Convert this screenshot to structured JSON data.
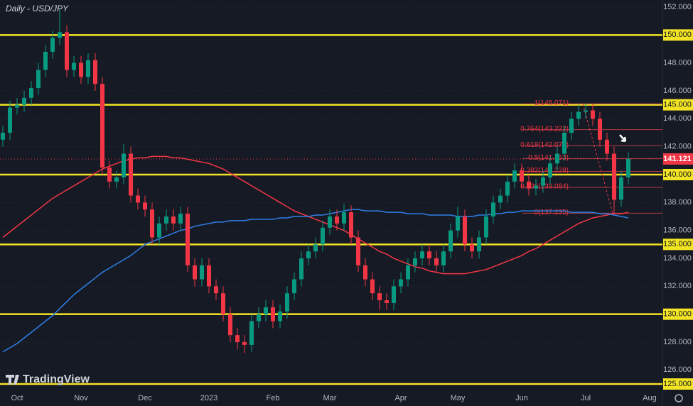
{
  "chart_data": {
    "type": "candlestick",
    "title": "Daily - USD/JPY",
    "watermark": "TradingView",
    "categories": [
      null,
      null,
      "Oct",
      null,
      null,
      null,
      null,
      null,
      null,
      null,
      null,
      "Nov",
      null,
      null,
      null,
      null,
      null,
      null,
      null,
      null,
      "Dec",
      null,
      null,
      null,
      null,
      null,
      null,
      null,
      null,
      "2023",
      null,
      null,
      null,
      null,
      null,
      null,
      null,
      null,
      "Feb",
      null,
      null,
      null,
      null,
      null,
      null,
      null,
      "Mar",
      null,
      null,
      null,
      null,
      null,
      null,
      null,
      null,
      null,
      "Apr",
      null,
      null,
      null,
      null,
      null,
      null,
      null,
      "May",
      null,
      null,
      null,
      null,
      null,
      null,
      null,
      null,
      "Jun",
      null,
      null,
      null,
      null,
      null,
      null,
      null,
      null,
      "Jul",
      null,
      null,
      null,
      null,
      null,
      null,
      null,
      null,
      "Aug"
    ],
    "open": [
      142.5,
      143.0,
      144.8,
      145.0,
      145.5,
      146.2,
      147.5,
      148.8,
      149.8,
      150.2,
      147.5,
      148.0,
      147.0,
      148.2,
      146.5,
      140.5,
      139.5,
      139.8,
      141.5,
      138.5,
      138.0,
      137.5,
      135.5,
      136.5,
      137.0,
      136.5,
      137.2,
      133.5,
      132.5,
      133.5,
      132.0,
      131.5,
      130.0,
      128.5,
      128.0,
      127.8,
      129.5,
      130.0,
      130.5,
      129.5,
      130.2,
      131.5,
      132.5,
      134.0,
      134.5,
      135.0,
      136.2,
      137.0,
      136.5,
      137.3,
      135.5,
      133.5,
      132.5,
      131.5,
      131.0,
      130.8,
      132.0,
      132.5,
      133.5,
      134.0,
      134.5,
      134.0,
      133.5,
      134.5,
      136.0,
      137.0,
      135.0,
      134.5,
      135.5,
      137.0,
      138.0,
      138.5,
      139.5,
      140.3,
      139.5,
      139.0,
      139.2,
      139.8,
      140.8,
      141.5,
      143.0,
      144.0,
      144.5,
      144.6,
      144.0,
      142.5,
      141.5,
      138.2,
      139.8,
      null,
      null,
      null
    ],
    "high": [
      143.5,
      145.3,
      145.5,
      146.0,
      146.7,
      148.0,
      149.3,
      150.3,
      151.9,
      150.7,
      148.5,
      148.5,
      148.7,
      148.7,
      147.0,
      141.0,
      140.3,
      142.2,
      142.0,
      139.0,
      138.5,
      138.0,
      137.0,
      137.5,
      137.5,
      137.7,
      137.7,
      134.0,
      134.0,
      134.0,
      132.5,
      132.0,
      130.5,
      129.0,
      128.5,
      130.0,
      130.5,
      131.0,
      131.0,
      130.7,
      132.0,
      133.0,
      134.5,
      135.0,
      135.5,
      136.7,
      137.5,
      137.5,
      137.9,
      137.8,
      136.0,
      134.0,
      133.0,
      132.0,
      131.5,
      132.5,
      133.0,
      134.0,
      134.5,
      135.0,
      135.0,
      134.5,
      135.0,
      136.5,
      137.7,
      137.5,
      135.5,
      136.0,
      137.5,
      138.5,
      139.0,
      140.0,
      140.8,
      140.8,
      140.0,
      139.7,
      140.3,
      141.3,
      142.0,
      143.5,
      144.5,
      145.0,
      145.1,
      145.1,
      144.5,
      143.0,
      142.0,
      140.3,
      141.6,
      null,
      null,
      null
    ],
    "low": [
      142.0,
      142.5,
      144.3,
      144.5,
      145.0,
      145.7,
      147.0,
      148.3,
      149.3,
      147.0,
      147.0,
      146.5,
      146.5,
      146.0,
      140.0,
      139.0,
      139.0,
      139.3,
      138.0,
      137.5,
      137.0,
      135.0,
      135.0,
      136.0,
      136.0,
      136.0,
      133.0,
      132.0,
      132.0,
      131.5,
      131.0,
      129.5,
      128.0,
      127.5,
      127.2,
      127.3,
      129.0,
      129.5,
      129.0,
      129.0,
      129.7,
      131.0,
      132.0,
      133.5,
      134.0,
      134.5,
      135.7,
      136.0,
      136.0,
      135.0,
      133.0,
      132.0,
      131.0,
      130.3,
      130.3,
      130.3,
      131.5,
      132.0,
      133.0,
      133.5,
      133.5,
      133.0,
      133.0,
      134.0,
      135.5,
      134.5,
      134.0,
      134.0,
      135.0,
      136.5,
      137.5,
      138.0,
      139.0,
      139.0,
      138.5,
      138.5,
      138.7,
      139.3,
      140.3,
      141.0,
      142.5,
      143.5,
      144.0,
      143.5,
      142.0,
      141.0,
      137.2,
      137.7,
      139.3,
      null,
      null,
      null
    ],
    "close": [
      143.0,
      144.8,
      145.0,
      145.5,
      146.2,
      147.5,
      148.8,
      149.8,
      150.2,
      147.5,
      148.0,
      147.0,
      148.2,
      146.5,
      140.5,
      139.5,
      139.8,
      141.5,
      138.5,
      138.0,
      137.5,
      135.5,
      136.5,
      137.0,
      136.5,
      137.2,
      133.5,
      132.5,
      133.5,
      132.0,
      131.5,
      130.0,
      128.5,
      128.0,
      127.8,
      129.5,
      130.0,
      130.5,
      129.5,
      130.2,
      131.5,
      132.5,
      134.0,
      134.5,
      135.0,
      136.2,
      137.0,
      136.5,
      137.3,
      135.5,
      133.5,
      132.5,
      131.5,
      131.0,
      130.8,
      132.0,
      132.5,
      133.5,
      134.0,
      134.5,
      134.0,
      133.5,
      134.5,
      136.0,
      137.0,
      135.0,
      134.5,
      135.5,
      137.0,
      138.0,
      138.5,
      139.5,
      140.3,
      139.5,
      139.0,
      139.2,
      139.8,
      140.8,
      141.5,
      143.0,
      144.0,
      144.5,
      144.6,
      144.0,
      142.5,
      141.5,
      138.2,
      139.8,
      141.121,
      null,
      null,
      null
    ],
    "up_color": "#089981",
    "down_color": "#f23645",
    "moving_averages": [
      {
        "color": "#f23645",
        "values": [
          135.5,
          135.9,
          136.3,
          136.7,
          137.1,
          137.5,
          137.9,
          138.3,
          138.6,
          138.9,
          139.2,
          139.5,
          139.8,
          140.1,
          140.4,
          140.6,
          140.8,
          141.0,
          141.1,
          141.2,
          141.2,
          141.3,
          141.3,
          141.3,
          141.2,
          141.2,
          141.1,
          141.0,
          140.9,
          140.8,
          140.6,
          140.4,
          140.1,
          139.8,
          139.5,
          139.2,
          138.9,
          138.6,
          138.3,
          138.0,
          137.7,
          137.4,
          137.2,
          137.0,
          136.8,
          136.6,
          136.4,
          136.2,
          136.0,
          135.7,
          135.4,
          135.1,
          134.8,
          134.5,
          134.3,
          134.0,
          133.8,
          133.6,
          133.4,
          133.3,
          133.1,
          133.0,
          132.9,
          132.9,
          132.9,
          132.9,
          133.0,
          133.1,
          133.2,
          133.4,
          133.6,
          133.8,
          134.0,
          134.2,
          134.5,
          134.7,
          135.0,
          135.3,
          135.6,
          135.9,
          136.2,
          136.5,
          136.7,
          136.9,
          137.0,
          137.1,
          137.2,
          137.2,
          137.3,
          null,
          null,
          null
        ]
      },
      {
        "color": "#2f7fe6",
        "values": [
          127.3,
          127.6,
          127.9,
          128.3,
          128.7,
          129.1,
          129.5,
          129.9,
          130.4,
          130.9,
          131.4,
          131.8,
          132.2,
          132.6,
          133.0,
          133.3,
          133.6,
          133.9,
          134.2,
          134.6,
          135.0,
          135.2,
          135.4,
          135.6,
          135.8,
          136.0,
          136.1,
          136.3,
          136.4,
          136.5,
          136.6,
          136.6,
          136.7,
          136.7,
          136.7,
          136.8,
          136.8,
          136.8,
          136.8,
          136.9,
          136.9,
          137.0,
          137.0,
          137.0,
          137.1,
          137.1,
          137.2,
          137.3,
          137.4,
          137.5,
          137.5,
          137.4,
          137.4,
          137.4,
          137.3,
          137.3,
          137.3,
          137.2,
          137.2,
          137.2,
          137.1,
          137.1,
          137.1,
          137.1,
          137.0,
          137.0,
          137.0,
          137.1,
          137.1,
          137.2,
          137.2,
          137.3,
          137.3,
          137.4,
          137.4,
          137.4,
          137.4,
          137.4,
          137.4,
          137.4,
          137.3,
          137.3,
          137.3,
          137.3,
          137.2,
          137.2,
          137.1,
          137.0,
          136.9,
          null,
          null,
          null
        ]
      }
    ],
    "ylim": [
      125,
      152
    ],
    "yticks": [
      {
        "value": 126,
        "label": "126.000"
      },
      {
        "value": 128,
        "label": "128.000"
      },
      {
        "value": 132,
        "label": "132.000"
      },
      {
        "value": 134,
        "label": "134.000"
      },
      {
        "value": 136,
        "label": "136.000"
      },
      {
        "value": 138,
        "label": "138.000"
      },
      {
        "value": 142,
        "label": "142.000"
      },
      {
        "value": 144,
        "label": "144.000"
      },
      {
        "value": 146,
        "label": "146.000"
      },
      {
        "value": 148,
        "label": "148.000"
      },
      {
        "value": 152,
        "label": "152.000"
      }
    ],
    "level_color": "#f2e424",
    "levels": [
      {
        "value": 125,
        "label": "125.000"
      },
      {
        "value": 130,
        "label": "130.000"
      },
      {
        "value": 135,
        "label": "135.000"
      },
      {
        "value": 140,
        "label": "140.000"
      },
      {
        "value": 145,
        "label": "145.000"
      },
      {
        "value": 150,
        "label": "150.000"
      }
    ],
    "fib_levels": [
      {
        "value": 145.071,
        "label": "1(145.071)"
      },
      {
        "value": 143.222,
        "label": "0.764(143.222)"
      },
      {
        "value": 142.078,
        "label": "0.618(142.078)"
      },
      {
        "value": 141.153,
        "label": "0.5(141.153)"
      },
      {
        "value": 140.228,
        "label": "0.382(140.228)"
      },
      {
        "value": 139.084,
        "label": "0.236(139.084)"
      },
      {
        "value": 137.235,
        "label": "0(137.235)"
      }
    ],
    "last_price": {
      "value": 141.121,
      "label": "141.121"
    }
  }
}
